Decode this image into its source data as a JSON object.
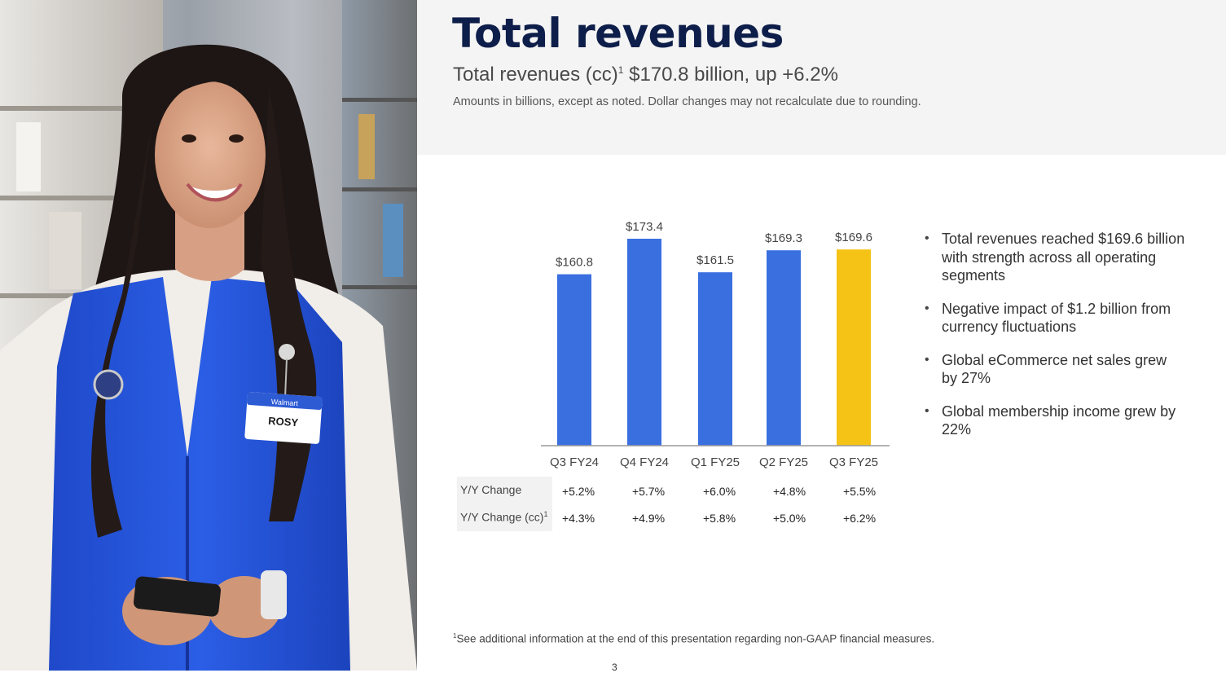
{
  "header": {
    "title": "Total revenues",
    "subtitle_prefix": "Total revenues (cc)",
    "subtitle_sup": "1",
    "subtitle_rest": " $170.8 billion, up +6.2%",
    "note": "Amounts in billions, except as noted.  Dollar changes may not recalculate due to rounding."
  },
  "photo": {
    "badge_name": "ROSY",
    "badge_brand": "Walmart"
  },
  "chart_data": {
    "type": "bar",
    "categories": [
      "Q3 FY24",
      "Q4 FY24",
      "Q1 FY25",
      "Q2 FY25",
      "Q3 FY25"
    ],
    "values": [
      160.8,
      173.4,
      161.5,
      169.3,
      169.6
    ],
    "value_labels": [
      "$160.8",
      "$173.4",
      "$161.5",
      "$169.3",
      "$169.6"
    ],
    "colors": [
      "#3a6fe0",
      "#3a6fe0",
      "#3a6fe0",
      "#3a6fe0",
      "#f4c316"
    ],
    "ylim": [
      0,
      173.4
    ],
    "grid": false,
    "legend": "none"
  },
  "yy_table": {
    "rows": [
      {
        "label": "Y/Y Change",
        "sup": "",
        "values": [
          "+5.2%",
          "+5.7%",
          "+6.0%",
          "+4.8%",
          "+5.5%"
        ]
      },
      {
        "label": "Y/Y Change (cc)",
        "sup": "1",
        "values": [
          "+4.3%",
          "+4.9%",
          "+5.8%",
          "+5.0%",
          "+6.2%"
        ]
      }
    ]
  },
  "bullets": [
    "Total revenues reached $169.6 billion with strength across all operating segments",
    "Negative impact of $1.2 billion from currency fluctuations",
    "Global eCommerce net sales grew by 27%",
    "Global membership income grew by 22%"
  ],
  "footer": {
    "footnote_sup": "1",
    "footnote": "See additional information at the end of this presentation regarding non-GAAP financial measures.",
    "page_number": "3"
  }
}
